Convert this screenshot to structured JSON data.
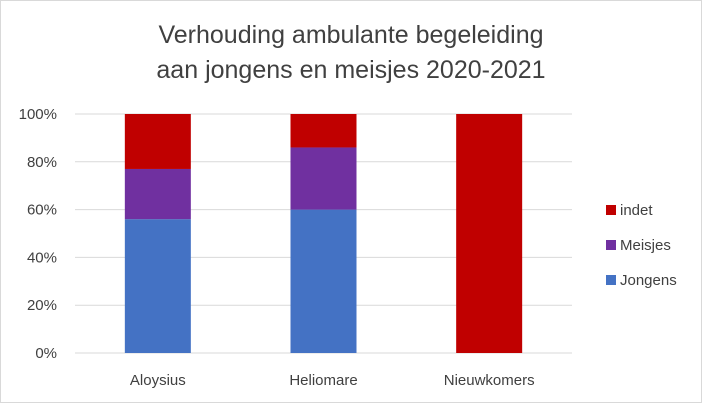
{
  "chart_data": {
    "type": "bar",
    "stacked": true,
    "normalized_percent": true,
    "title": "Verhouding ambulante begeleiding aan jongens en meisjes 2020-2021",
    "title_lines": [
      "Verhouding ambulante begeleiding",
      "aan jongens en meisjes 2020-2021"
    ],
    "categories": [
      "Aloysius",
      "Heliomare",
      "Nieuwkomers"
    ],
    "series": [
      {
        "name": "Jongens",
        "color": "#4472c4",
        "values": [
          56,
          60,
          0
        ]
      },
      {
        "name": "Meisjes",
        "color": "#7030a0",
        "values": [
          21,
          26,
          0
        ]
      },
      {
        "name": "indet",
        "color": "#c00000",
        "values": [
          23,
          14,
          100
        ]
      }
    ],
    "y_ticks": [
      "0%",
      "20%",
      "40%",
      "60%",
      "80%",
      "100%"
    ],
    "ylim": [
      0,
      100
    ],
    "grid": true,
    "legend_position": "right",
    "legend_order": [
      "indet",
      "Meisjes",
      "Jongens"
    ]
  }
}
